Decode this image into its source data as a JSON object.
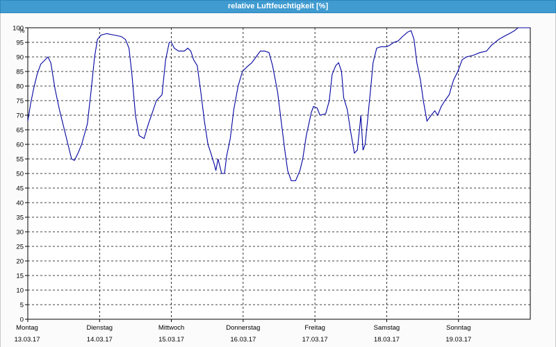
{
  "window": {
    "title": "relative Luftfeuchtigkeit [%]"
  },
  "chart_data": {
    "type": "line",
    "title": "relative Luftfeuchtigkeit [%]",
    "ylabel": "%",
    "ylim": [
      0,
      100
    ],
    "yticks": [
      0,
      5,
      10,
      15,
      20,
      25,
      30,
      35,
      40,
      45,
      50,
      55,
      60,
      65,
      70,
      75,
      80,
      85,
      90,
      95,
      100
    ],
    "xlim": [
      0,
      7
    ],
    "xticks": [
      {
        "x": 0,
        "day": "Montag",
        "date": "13.03.17"
      },
      {
        "x": 1,
        "day": "Dienstag",
        "date": "14.03.17"
      },
      {
        "x": 2,
        "day": "Mittwoch",
        "date": "15.03.17"
      },
      {
        "x": 3,
        "day": "Donnerstag",
        "date": "16.03.17"
      },
      {
        "x": 4,
        "day": "Freitag",
        "date": "17.03.17"
      },
      {
        "x": 5,
        "day": "Samstag",
        "date": "18.03.17"
      },
      {
        "x": 6,
        "day": "Sonntag",
        "date": "19.03.17"
      }
    ],
    "grid": true,
    "line_color": "#0000a0",
    "series": [
      {
        "name": "",
        "points": [
          [
            0.0,
            68
          ],
          [
            0.04,
            74
          ],
          [
            0.08,
            79
          ],
          [
            0.13,
            84
          ],
          [
            0.18,
            87.5
          ],
          [
            0.24,
            89
          ],
          [
            0.28,
            90
          ],
          [
            0.32,
            88
          ],
          [
            0.38,
            79
          ],
          [
            0.44,
            72
          ],
          [
            0.5,
            66
          ],
          [
            0.56,
            60
          ],
          [
            0.61,
            55
          ],
          [
            0.65,
            54.5
          ],
          [
            0.7,
            57
          ],
          [
            0.75,
            60
          ],
          [
            0.83,
            67
          ],
          [
            0.88,
            78
          ],
          [
            0.93,
            90
          ],
          [
            0.97,
            96
          ],
          [
            1.02,
            97.5
          ],
          [
            1.1,
            98
          ],
          [
            1.2,
            97.5
          ],
          [
            1.3,
            97
          ],
          [
            1.36,
            96
          ],
          [
            1.41,
            93
          ],
          [
            1.45,
            84
          ],
          [
            1.5,
            70
          ],
          [
            1.55,
            63
          ],
          [
            1.62,
            62
          ],
          [
            1.68,
            67
          ],
          [
            1.75,
            72
          ],
          [
            1.79,
            75
          ],
          [
            1.87,
            77
          ],
          [
            1.92,
            89
          ],
          [
            1.97,
            95
          ],
          [
            2.0,
            95
          ],
          [
            2.04,
            93
          ],
          [
            2.1,
            92
          ],
          [
            2.18,
            92
          ],
          [
            2.23,
            93
          ],
          [
            2.27,
            92
          ],
          [
            2.31,
            89
          ],
          [
            2.36,
            87
          ],
          [
            2.41,
            78
          ],
          [
            2.46,
            68
          ],
          [
            2.51,
            60
          ],
          [
            2.55,
            57
          ],
          [
            2.6,
            53
          ],
          [
            2.62,
            51
          ],
          [
            2.65,
            55
          ],
          [
            2.67,
            53
          ],
          [
            2.7,
            50
          ],
          [
            2.74,
            50
          ],
          [
            2.77,
            56
          ],
          [
            2.82,
            62
          ],
          [
            2.87,
            72
          ],
          [
            2.93,
            80
          ],
          [
            2.99,
            85
          ],
          [
            3.05,
            86.5
          ],
          [
            3.12,
            88
          ],
          [
            3.18,
            90
          ],
          [
            3.24,
            92
          ],
          [
            3.3,
            92
          ],
          [
            3.36,
            91.5
          ],
          [
            3.41,
            87
          ],
          [
            3.48,
            78
          ],
          [
            3.54,
            66
          ],
          [
            3.58,
            58
          ],
          [
            3.62,
            51
          ],
          [
            3.67,
            47.5
          ],
          [
            3.73,
            47.5
          ],
          [
            3.79,
            51
          ],
          [
            3.83,
            55
          ],
          [
            3.88,
            63
          ],
          [
            3.95,
            71
          ],
          [
            3.98,
            73
          ],
          [
            4.03,
            72.5
          ],
          [
            4.07,
            70
          ],
          [
            4.15,
            70.5
          ],
          [
            4.2,
            75
          ],
          [
            4.24,
            84
          ],
          [
            4.29,
            87
          ],
          [
            4.33,
            88
          ],
          [
            4.37,
            85
          ],
          [
            4.4,
            76
          ],
          [
            4.45,
            72
          ],
          [
            4.5,
            64
          ],
          [
            4.55,
            57
          ],
          [
            4.59,
            58
          ],
          [
            4.62,
            65
          ],
          [
            4.64,
            70
          ],
          [
            4.67,
            58
          ],
          [
            4.7,
            60
          ],
          [
            4.74,
            70
          ],
          [
            4.78,
            80
          ],
          [
            4.81,
            88
          ],
          [
            4.86,
            93
          ],
          [
            4.92,
            93.5
          ],
          [
            5.0,
            93.5
          ],
          [
            5.04,
            94
          ],
          [
            5.1,
            95
          ],
          [
            5.16,
            95.5
          ],
          [
            5.22,
            97
          ],
          [
            5.29,
            98.5
          ],
          [
            5.34,
            99
          ],
          [
            5.38,
            96
          ],
          [
            5.42,
            88
          ],
          [
            5.47,
            82
          ],
          [
            5.51,
            75
          ],
          [
            5.56,
            68
          ],
          [
            5.62,
            70
          ],
          [
            5.67,
            71.5
          ],
          [
            5.71,
            70
          ],
          [
            5.76,
            73
          ],
          [
            5.81,
            75
          ],
          [
            5.87,
            77
          ],
          [
            5.93,
            82
          ],
          [
            5.99,
            85
          ],
          [
            6.05,
            89
          ],
          [
            6.11,
            90
          ],
          [
            6.2,
            90.5
          ],
          [
            6.3,
            91.5
          ],
          [
            6.39,
            92
          ],
          [
            6.46,
            94
          ],
          [
            6.56,
            96
          ],
          [
            6.63,
            97
          ],
          [
            6.71,
            98
          ],
          [
            6.78,
            99
          ],
          [
            6.83,
            100
          ],
          [
            7.0,
            100
          ]
        ]
      }
    ]
  }
}
